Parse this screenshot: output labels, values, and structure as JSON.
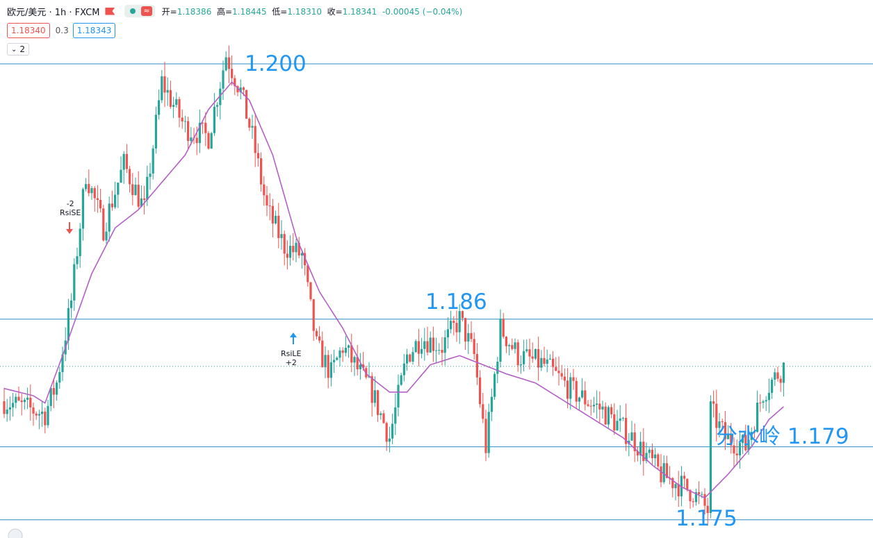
{
  "header": {
    "symbol": "欧元/美元 · 1h · FXCM",
    "ohlc": [
      {
        "k": "开=",
        "v": "1.18386"
      },
      {
        "k": "高=",
        "v": "1.18445"
      },
      {
        "k": "低=",
        "v": "1.18310"
      },
      {
        "k": "收=",
        "v": "1.18341"
      }
    ],
    "change": "-0.00045 (−0.04%)"
  },
  "quote": {
    "bid": "1.18340",
    "spread": "0.3",
    "ask": "1.18343"
  },
  "indicator_toggle": "2",
  "annotations": {
    "level_1200": "1.200",
    "level_1186": "1.186",
    "level_1179": "分水岭 1.179",
    "level_1175": "1.175"
  },
  "signals": {
    "short_count": "-2",
    "short_name": "RsiSE",
    "long_name": "RsiLE",
    "long_count": "+2"
  },
  "colors": {
    "up": "#26a69a",
    "down": "#ef5350",
    "ma": "#b35fc6",
    "level": "#2b8cc4"
  },
  "chart_data": {
    "type": "candlestick",
    "ylim": [
      1.174,
      1.2035
    ],
    "horizontal_levels": [
      1.2,
      1.186,
      1.179,
      1.175
    ],
    "last_price": 1.18341,
    "close_path_anchors": [
      [
        0,
        1.1815
      ],
      [
        6,
        1.1812
      ],
      [
        10,
        1.181
      ],
      [
        14,
        1.1808
      ],
      [
        18,
        1.1825
      ],
      [
        23,
        1.187
      ],
      [
        28,
        1.194
      ],
      [
        34,
        1.191
      ],
      [
        41,
        1.1945
      ],
      [
        48,
        1.192
      ],
      [
        54,
        1.199
      ],
      [
        62,
        1.1965
      ],
      [
        70,
        1.196
      ],
      [
        76,
        1.2005
      ],
      [
        81,
        1.1985
      ],
      [
        85,
        1.196
      ],
      [
        90,
        1.192
      ],
      [
        96,
        1.19
      ],
      [
        102,
        1.1895
      ],
      [
        107,
        1.1845
      ],
      [
        112,
        1.183
      ],
      [
        116,
        1.1845
      ],
      [
        120,
        1.1835
      ],
      [
        126,
        1.182
      ],
      [
        132,
        1.1795
      ],
      [
        138,
        1.184
      ],
      [
        143,
        1.185
      ],
      [
        150,
        1.1845
      ],
      [
        156,
        1.186
      ],
      [
        161,
        1.184
      ],
      [
        165,
        1.179
      ],
      [
        170,
        1.1855
      ],
      [
        176,
        1.184
      ],
      [
        185,
        1.1835
      ],
      [
        195,
        1.182
      ],
      [
        205,
        1.181
      ],
      [
        215,
        1.1795
      ],
      [
        225,
        1.1775
      ],
      [
        236,
        1.1765
      ],
      [
        241,
        1.1755
      ],
      [
        242,
        1.181
      ],
      [
        247,
        1.1795
      ],
      [
        254,
        1.179
      ],
      [
        260,
        1.182
      ],
      [
        267,
        1.1834
      ]
    ],
    "ma_anchors": [
      [
        0,
        1.1822
      ],
      [
        10,
        1.1818
      ],
      [
        14,
        1.1814
      ],
      [
        20,
        1.184
      ],
      [
        30,
        1.1885
      ],
      [
        38,
        1.191
      ],
      [
        46,
        1.192
      ],
      [
        54,
        1.1935
      ],
      [
        62,
        1.195
      ],
      [
        70,
        1.1975
      ],
      [
        78,
        1.199
      ],
      [
        84,
        1.198
      ],
      [
        92,
        1.195
      ],
      [
        100,
        1.1905
      ],
      [
        108,
        1.1875
      ],
      [
        116,
        1.1855
      ],
      [
        124,
        1.183
      ],
      [
        132,
        1.182
      ],
      [
        138,
        1.182
      ],
      [
        146,
        1.1835
      ],
      [
        156,
        1.184
      ],
      [
        164,
        1.1835
      ],
      [
        172,
        1.183
      ],
      [
        182,
        1.1825
      ],
      [
        192,
        1.1815
      ],
      [
        202,
        1.1805
      ],
      [
        212,
        1.1795
      ],
      [
        222,
        1.178
      ],
      [
        232,
        1.1768
      ],
      [
        240,
        1.1762
      ],
      [
        248,
        1.1775
      ],
      [
        256,
        1.179
      ],
      [
        262,
        1.1805
      ],
      [
        267,
        1.1812
      ]
    ]
  }
}
